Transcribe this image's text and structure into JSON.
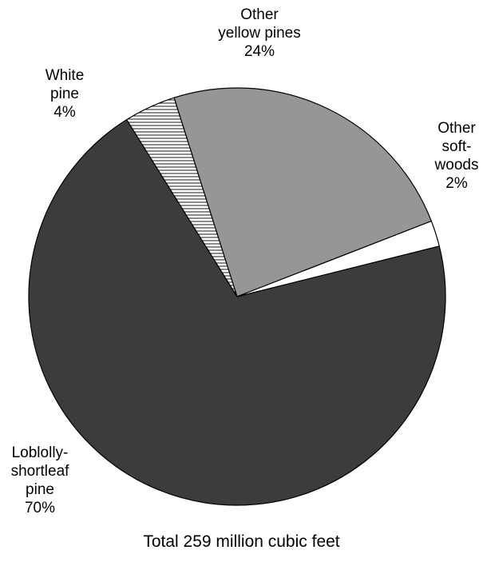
{
  "chart_data": {
    "type": "pie",
    "caption": "Total 259 million cubic feet",
    "slices": [
      {
        "label": [
          "Loblolly-",
          "shortleaf",
          "pine"
        ],
        "value": 70,
        "value_label": "70%",
        "fill": "#3c3c3c",
        "pattern": "solid"
      },
      {
        "label": [
          "White",
          "pine"
        ],
        "value": 4,
        "value_label": "4%",
        "fill": "#ffffff",
        "pattern": "horizontal-hatch"
      },
      {
        "label": [
          "Other",
          "yellow pines"
        ],
        "value": 24,
        "value_label": "24%",
        "fill": "#969696",
        "pattern": "solid"
      },
      {
        "label": [
          "Other",
          "soft-",
          "woods"
        ],
        "value": 2,
        "value_label": "2%",
        "fill": "#ffffff",
        "pattern": "solid"
      }
    ]
  }
}
